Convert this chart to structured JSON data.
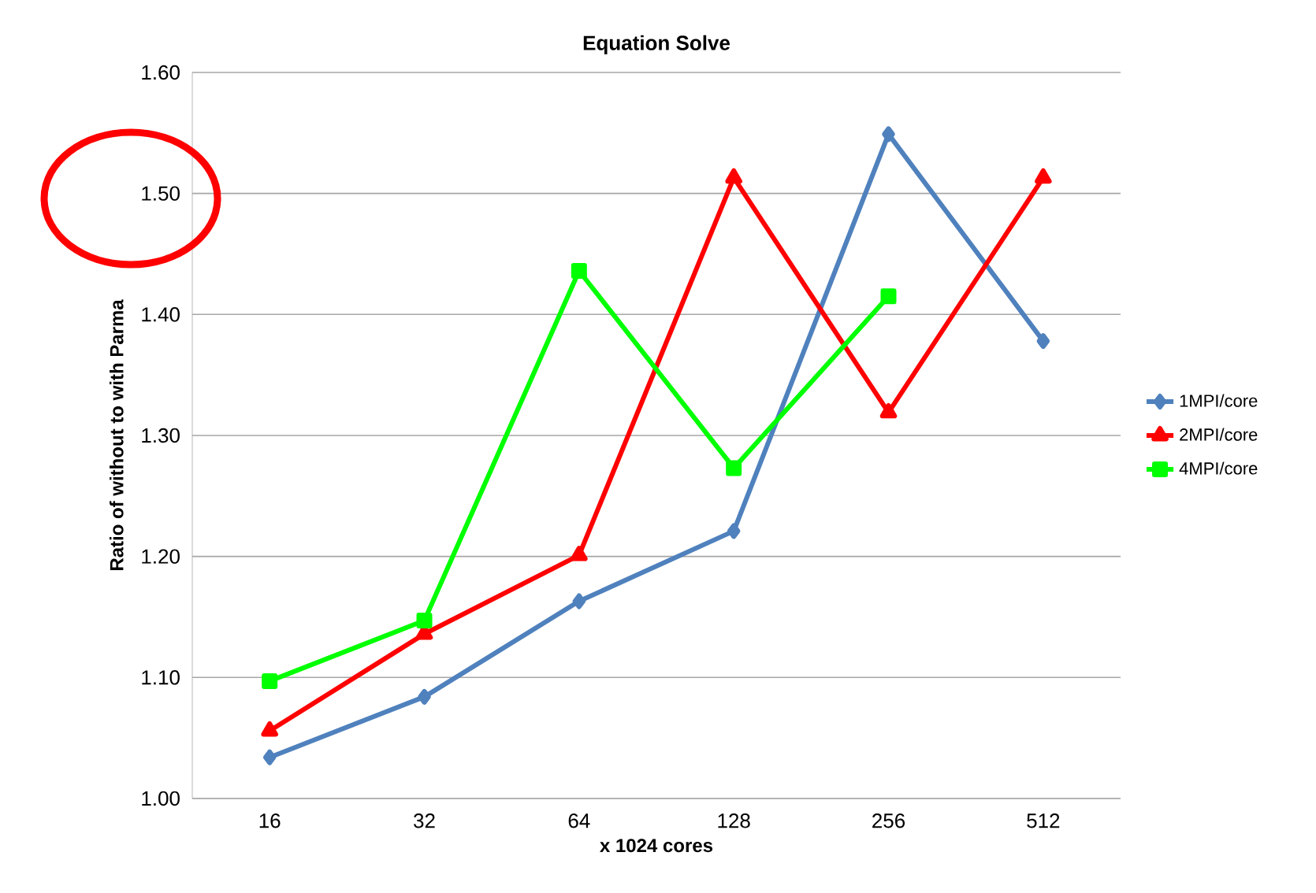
{
  "chart_data": {
    "type": "line",
    "title": "Equation Solve",
    "xlabel": "x 1024 cores",
    "ylabel": "Ratio of  without to with Parma",
    "categories": [
      "16",
      "32",
      "64",
      "128",
      "256",
      "512"
    ],
    "series": [
      {
        "name": "1MPI/core",
        "color": "#4f81bd",
        "marker": "diamond",
        "values": [
          1.034,
          1.084,
          1.163,
          1.221,
          1.549,
          1.378
        ]
      },
      {
        "name": "2MPI/core",
        "color": "#ff0000",
        "marker": "triangle",
        "values": [
          1.056,
          1.136,
          1.201,
          1.513,
          1.319,
          1.513
        ]
      },
      {
        "name": "4MPI/core",
        "color": "#00ff00",
        "marker": "square",
        "values": [
          1.097,
          1.147,
          1.436,
          1.273,
          1.415,
          null
        ]
      }
    ],
    "ylim": [
      1.0,
      1.6
    ],
    "yticks": [
      {
        "value": 1.0,
        "label": "1.00"
      },
      {
        "value": 1.1,
        "label": "1.10"
      },
      {
        "value": 1.2,
        "label": "1.20"
      },
      {
        "value": 1.3,
        "label": "1.30"
      },
      {
        "value": 1.4,
        "label": "1.40"
      },
      {
        "value": 1.5,
        "label": "1.50"
      },
      {
        "value": 1.6,
        "label": "1.60"
      }
    ],
    "grid": "y",
    "legend": "right",
    "line_style": "solid"
  }
}
